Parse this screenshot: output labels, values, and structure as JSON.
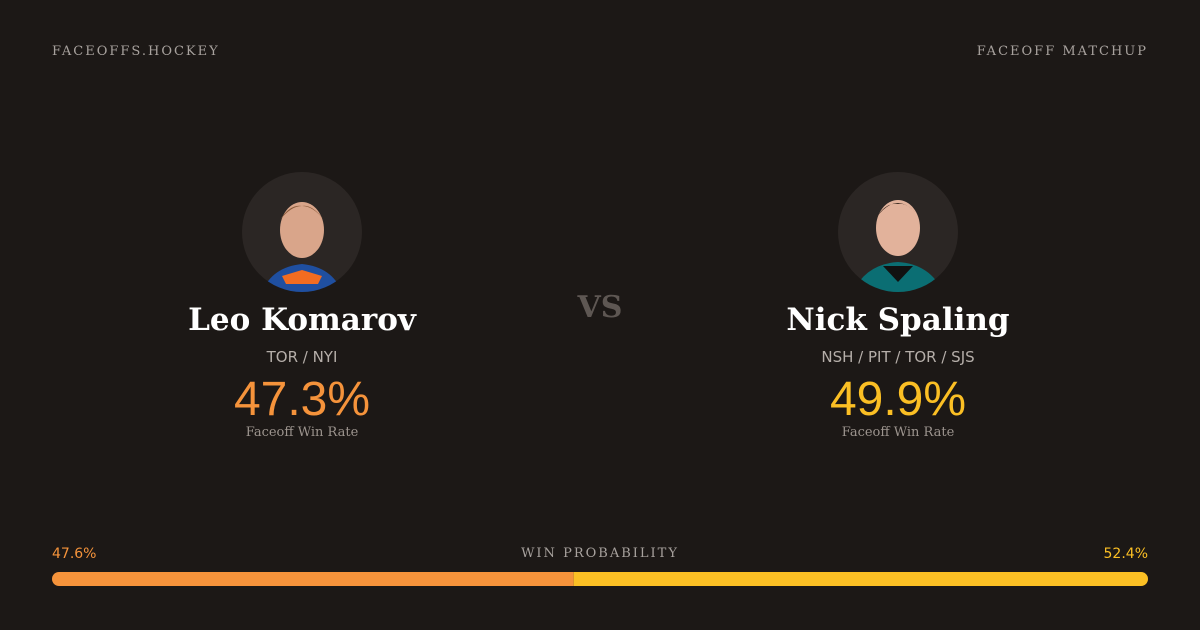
{
  "header": {
    "site": "FACEOFFS.HOCKEY",
    "section": "FACEOFF MATCHUP"
  },
  "players": [
    {
      "name": "Leo Komarov",
      "teams": "TOR / NYI",
      "win_rate": "47.3%",
      "win_rate_label": "Faceoff Win Rate",
      "color": "#f5933b"
    },
    {
      "name": "Nick Spaling",
      "teams": "NSH / PIT / TOR / SJS",
      "win_rate": "49.9%",
      "win_rate_label": "Faceoff Win Rate",
      "color": "#fbbf24"
    }
  ],
  "versus": "VS",
  "win_probability": {
    "label": "WIN PROBABILITY",
    "values": [
      47.6,
      52.4
    ],
    "value_labels": [
      "47.6%",
      "52.4%"
    ]
  }
}
